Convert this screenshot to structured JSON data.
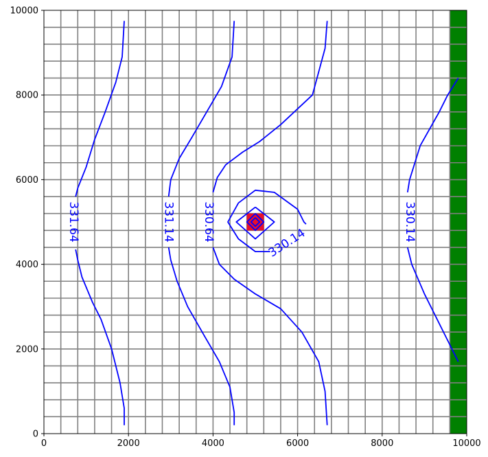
{
  "chart_data": {
    "type": "contour",
    "title": "",
    "xlabel": "",
    "ylabel": "",
    "xlim": [
      0,
      10000
    ],
    "ylim": [
      0,
      10000
    ],
    "x_ticks": [
      0,
      2000,
      4000,
      6000,
      8000,
      10000
    ],
    "y_ticks": [
      0,
      2000,
      4000,
      6000,
      8000,
      10000
    ],
    "x_tick_labels": [
      "0",
      "2000",
      "4000",
      "6000",
      "8000",
      "10000"
    ],
    "y_tick_labels": [
      "0",
      "2000",
      "4000",
      "6000",
      "8000",
      "10000"
    ],
    "grid": {
      "cell_size": 400,
      "color": "#808080",
      "x_lines": [
        400,
        800,
        1200,
        1600,
        2000,
        2400,
        2800,
        3200,
        3600,
        4000,
        4400,
        4800,
        5200,
        5600,
        6000,
        6400,
        6800,
        7200,
        7600,
        8000,
        8400,
        8800,
        9200,
        9600
      ],
      "y_lines": [
        400,
        800,
        1200,
        1600,
        2000,
        2400,
        2800,
        3200,
        3600,
        4000,
        4400,
        4800,
        5200,
        5600,
        6000,
        6400,
        6800,
        7200,
        7600,
        8000,
        8400,
        8800,
        9200,
        9600
      ]
    },
    "boundary_column": {
      "x_range": [
        9600,
        10000
      ],
      "y_range": [
        0,
        10000
      ],
      "color": "#008000"
    },
    "well_cell": {
      "x_range": [
        4800,
        5200
      ],
      "y_range": [
        4800,
        5200
      ],
      "color": "#e8102c"
    },
    "contour_color": "#0000ff",
    "contours": [
      {
        "label": "331.64",
        "segments": [
          [
            [
              1900,
              9750
            ],
            [
              1850,
              8900
            ],
            [
              1700,
              8300
            ],
            [
              1450,
              7600
            ],
            [
              1200,
              6950
            ],
            [
              1000,
              6300
            ],
            [
              800,
              5800
            ],
            [
              750,
              5600
            ]
          ],
          [
            [
              750,
              4350
            ],
            [
              800,
              4100
            ],
            [
              900,
              3700
            ],
            [
              1150,
              3100
            ],
            [
              1350,
              2700
            ],
            [
              1600,
              2000
            ],
            [
              1800,
              1200
            ],
            [
              1900,
              600
            ],
            [
              1900,
              200
            ]
          ]
        ],
        "label_pos": [
          700,
          5000
        ],
        "label_angle": 90
      },
      {
        "label": "331.14",
        "segments": [
          [
            [
              4500,
              9750
            ],
            [
              4450,
              8900
            ],
            [
              4200,
              8200
            ],
            [
              3850,
              7600
            ],
            [
              3500,
              7000
            ],
            [
              3200,
              6500
            ],
            [
              3000,
              6000
            ],
            [
              2950,
              5600
            ]
          ],
          [
            [
              2950,
              4400
            ],
            [
              3000,
              4100
            ],
            [
              3150,
              3600
            ],
            [
              3400,
              3000
            ],
            [
              3800,
              2300
            ],
            [
              4150,
              1700
            ],
            [
              4400,
              1100
            ],
            [
              4500,
              500
            ],
            [
              4500,
              200
            ]
          ]
        ],
        "label_pos": [
          2950,
          5000
        ],
        "label_angle": 90
      },
      {
        "label": "330.64",
        "segments": [
          [
            [
              6700,
              9750
            ],
            [
              6650,
              9100
            ],
            [
              6350,
              8000
            ],
            [
              5600,
              7300
            ],
            [
              5100,
              6900
            ],
            [
              4700,
              6650
            ],
            [
              4300,
              6350
            ],
            [
              4100,
              6050
            ],
            [
              4000,
              5700
            ]
          ],
          [
            [
              4000,
              4400
            ],
            [
              4150,
              4000
            ],
            [
              4500,
              3650
            ],
            [
              5000,
              3300
            ],
            [
              5600,
              2950
            ],
            [
              6100,
              2400
            ],
            [
              6500,
              1700
            ],
            [
              6650,
              1000
            ],
            [
              6700,
              200
            ]
          ]
        ],
        "label_pos": [
          3900,
          5000
        ],
        "label_angle": 90
      },
      {
        "label": "330.14",
        "segments": [
          [
            [
              5350,
              4300
            ],
            [
              5000,
              4300
            ],
            [
              4600,
              4600
            ],
            [
              4350,
              5000
            ],
            [
              4600,
              5450
            ],
            [
              5000,
              5750
            ],
            [
              5450,
              5700
            ],
            [
              6000,
              5300
            ],
            [
              6150,
              5000
            ],
            [
              6200,
              4950
            ]
          ],
          [
            [
              9800,
              8400
            ],
            [
              9550,
              8000
            ],
            [
              9350,
              7600
            ],
            [
              8900,
              6800
            ],
            [
              8650,
              6000
            ],
            [
              8600,
              5700
            ]
          ],
          [
            [
              8600,
              4400
            ],
            [
              8700,
              4000
            ],
            [
              9000,
              3300
            ],
            [
              9300,
              2700
            ],
            [
              9550,
              2200
            ],
            [
              9800,
              1700
            ]
          ]
        ],
        "label_pos": [
          5750,
          4500
        ],
        "label_angle": -33,
        "extra_label_pos": [
          8650,
          5000
        ],
        "extra_label_angle": 90
      },
      {
        "label": "",
        "segments": [
          [
            [
              5000,
              5350
            ],
            [
              5450,
              5000
            ],
            [
              5000,
              4600
            ],
            [
              4550,
              5000
            ],
            [
              5000,
              5350
            ]
          ]
        ]
      },
      {
        "label": "",
        "segments": [
          [
            [
              5000,
              5200
            ],
            [
              5200,
              5000
            ],
            [
              5000,
              4800
            ],
            [
              4800,
              5000
            ],
            [
              5000,
              5200
            ]
          ]
        ]
      },
      {
        "label": "",
        "segments": [
          [
            [
              5000,
              5100
            ],
            [
              5100,
              5000
            ],
            [
              5000,
              4900
            ],
            [
              4900,
              5000
            ],
            [
              5000,
              5100
            ]
          ]
        ]
      }
    ]
  }
}
